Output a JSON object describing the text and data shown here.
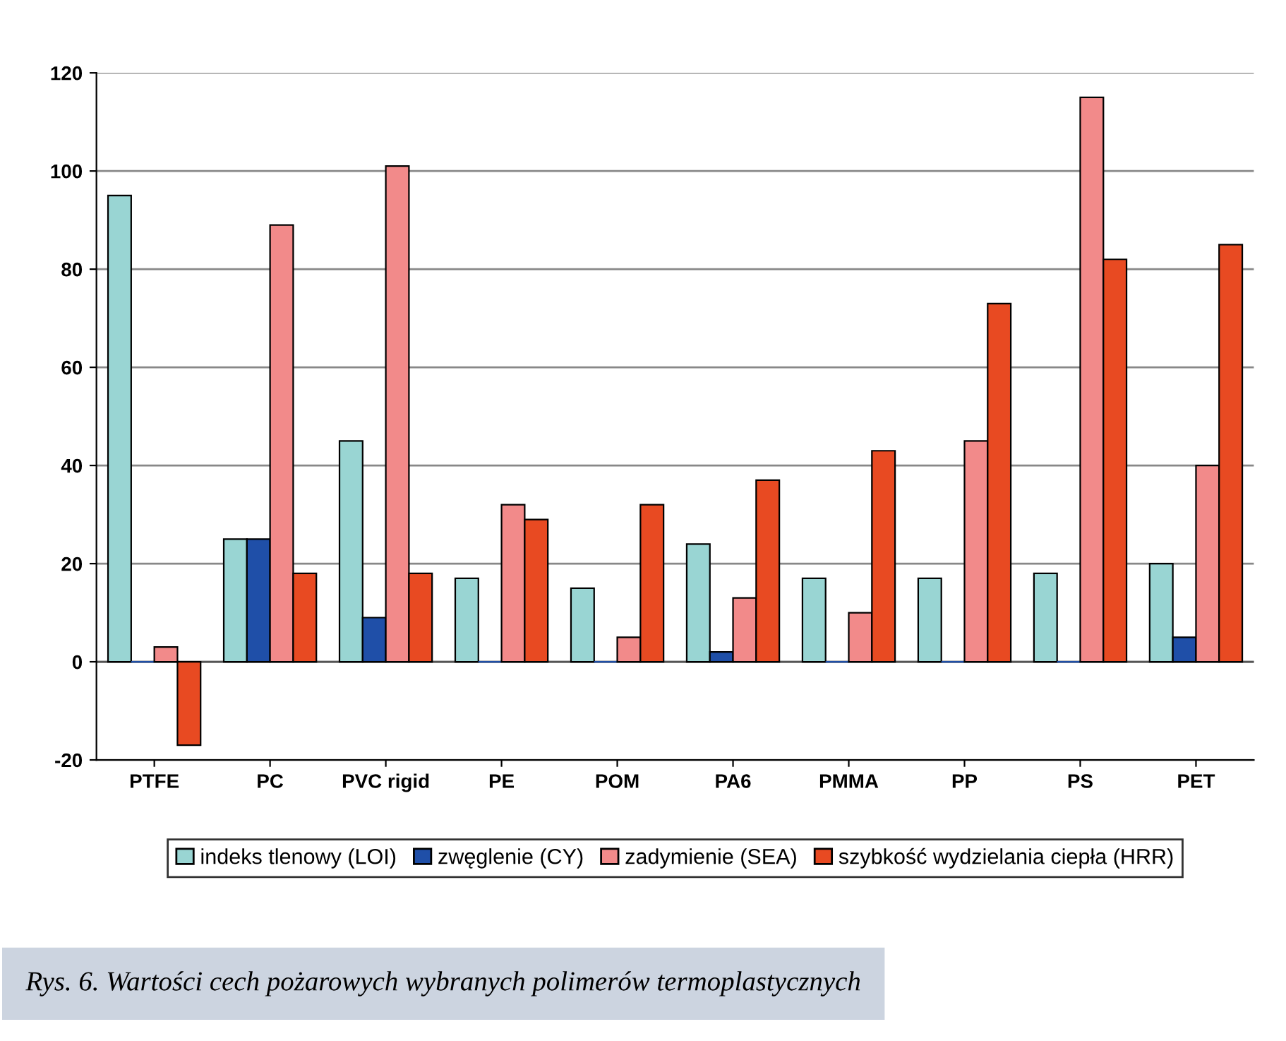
{
  "chart_data": {
    "type": "bar",
    "categories": [
      "PTFE",
      "PC",
      "PVC rigid",
      "PE",
      "POM",
      "PA6",
      "PMMA",
      "PP",
      "PS",
      "PET"
    ],
    "series": [
      {
        "name": "indeks tlenowy (LOI)",
        "color": "#99d5d3",
        "values": [
          95,
          25,
          45,
          17,
          15,
          24,
          17,
          17,
          18,
          20
        ]
      },
      {
        "name": "zwęglenie (CY)",
        "color": "#1f4fa8",
        "values": [
          0,
          25,
          9,
          0,
          0,
          2,
          0,
          0,
          0,
          5
        ]
      },
      {
        "name": "zadymienie (SEA)",
        "color": "#f28a8a",
        "values": [
          3,
          89,
          101,
          32,
          5,
          13,
          10,
          45,
          115,
          40
        ]
      },
      {
        "name": "szybkość wydzielania ciepła (HRR)",
        "color": "#e84a22",
        "values": [
          -17,
          18,
          18,
          29,
          32,
          37,
          43,
          73,
          82,
          85
        ]
      }
    ],
    "ylim": [
      -20,
      120
    ],
    "yticks": [
      -20,
      0,
      20,
      40,
      60,
      80,
      100,
      120
    ],
    "grid": "y",
    "legend": "bottom",
    "annotations": [
      "Rys. 6. Wartości cech pożarowych wybranych polimerów termoplastycznych"
    ]
  }
}
